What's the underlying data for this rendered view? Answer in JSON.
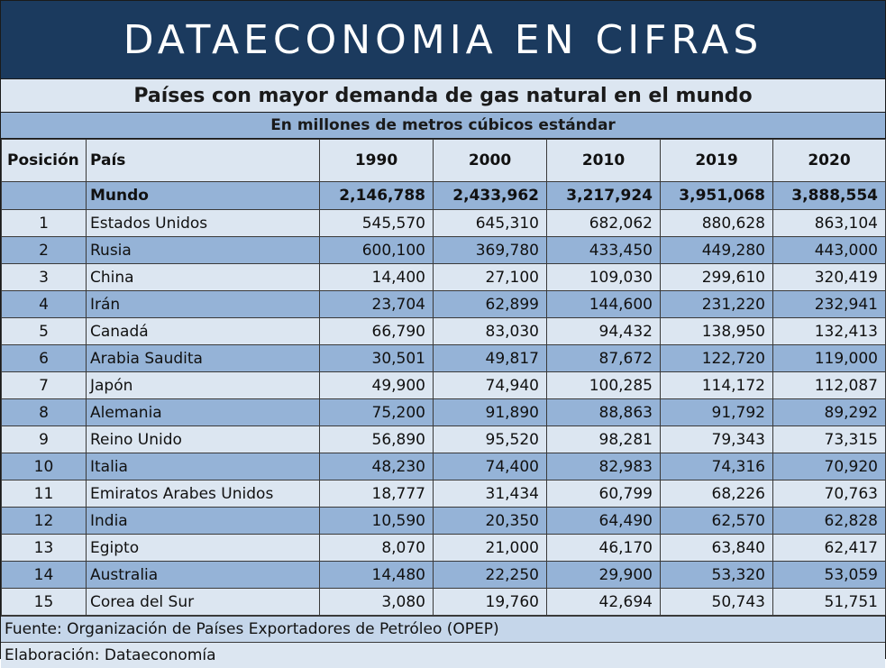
{
  "header": {
    "banner": "DATAECONOMIA EN CIFRAS",
    "title": "Países con mayor demanda de gas natural en el mundo",
    "units": "En millones de metros cúbicos estándar"
  },
  "colors": {
    "banner_bg": "#1b3a5e",
    "light_row": "#dce6f1",
    "dark_row": "#95b3d7"
  },
  "chart_data": {
    "type": "table",
    "title": "Países con mayor demanda de gas natural en el mundo",
    "subtitle": "En millones de metros cúbicos estándar",
    "columns": [
      "Posición",
      "País",
      "1990",
      "2000",
      "2010",
      "2019",
      "2020"
    ],
    "rows": [
      [
        "",
        "Mundo",
        "2,146,788",
        "2,433,962",
        "3,217,924",
        "3,951,068",
        "3,888,554"
      ],
      [
        "1",
        "Estados Unidos",
        "545,570",
        "645,310",
        "682,062",
        "880,628",
        "863,104"
      ],
      [
        "2",
        "Rusia",
        "600,100",
        "369,780",
        "433,450",
        "449,280",
        "443,000"
      ],
      [
        "3",
        "China",
        "14,400",
        "27,100",
        "109,030",
        "299,610",
        "320,419"
      ],
      [
        "4",
        "Irán",
        "23,704",
        "62,899",
        "144,600",
        "231,220",
        "232,941"
      ],
      [
        "5",
        "Canadá",
        "66,790",
        "83,030",
        "94,432",
        "138,950",
        "132,413"
      ],
      [
        "6",
        "Arabia Saudita",
        "30,501",
        "49,817",
        "87,672",
        "122,720",
        "119,000"
      ],
      [
        "7",
        "Japón",
        "49,900",
        "74,940",
        "100,285",
        "114,172",
        "112,087"
      ],
      [
        "8",
        "Alemania",
        "75,200",
        "91,890",
        "88,863",
        "91,792",
        "89,292"
      ],
      [
        "9",
        "Reino Unido",
        "56,890",
        "95,520",
        "98,281",
        "79,343",
        "73,315"
      ],
      [
        "10",
        "Italia",
        "48,230",
        "74,400",
        "82,983",
        "74,316",
        "70,920"
      ],
      [
        "11",
        "Emiratos Arabes Unidos",
        "18,777",
        "31,434",
        "60,799",
        "68,226",
        "70,763"
      ],
      [
        "12",
        "India",
        "10,590",
        "20,350",
        "64,490",
        "62,570",
        "62,828"
      ],
      [
        "13",
        "Egipto",
        "8,070",
        "21,000",
        "46,170",
        "63,840",
        "62,417"
      ],
      [
        "14",
        "Australia",
        "14,480",
        "22,250",
        "29,900",
        "53,320",
        "53,059"
      ],
      [
        "15",
        "Corea del Sur",
        "3,080",
        "19,760",
        "42,694",
        "50,743",
        "51,751"
      ]
    ]
  },
  "footer": {
    "source": "Fuente: Organización de Países Exportadores de Petróleo (OPEP)",
    "author": "Elaboración: Dataeconomía"
  }
}
